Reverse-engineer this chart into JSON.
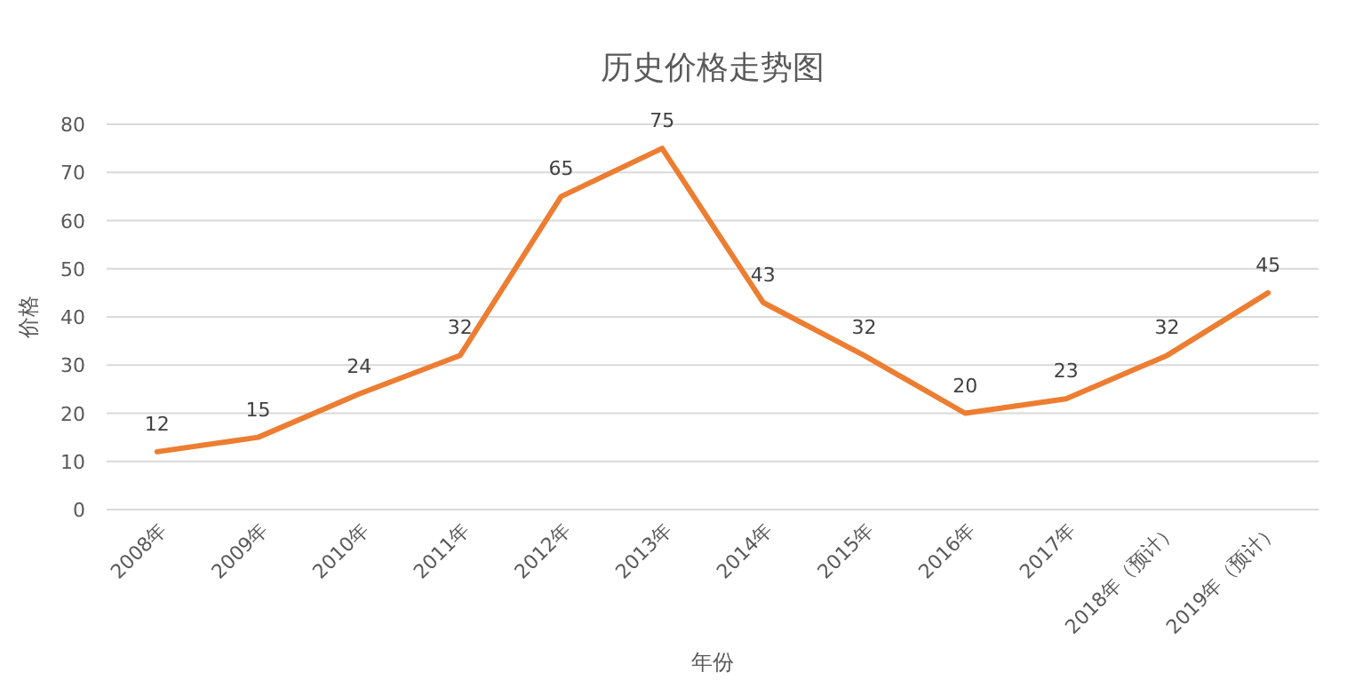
{
  "chart_data": {
    "type": "line",
    "title": "历史价格走势图",
    "xlabel": "年份",
    "ylabel": "价格",
    "categories": [
      "2008年",
      "2009年",
      "2010年",
      "2011年",
      "2012年",
      "2013年",
      "2014年",
      "2015年",
      "2016年",
      "2017年",
      "2018年（预计）",
      "2019年（预计）"
    ],
    "series": [
      {
        "color": "#ed7d31",
        "values": [
          12,
          15,
          24,
          32,
          65,
          75,
          43,
          32,
          20,
          23,
          32,
          45
        ]
      }
    ],
    "ylim": [
      0,
      80
    ],
    "yticks": [
      0,
      10,
      20,
      30,
      40,
      50,
      60,
      70,
      80
    ],
    "grid": "y",
    "data_labels": true
  }
}
